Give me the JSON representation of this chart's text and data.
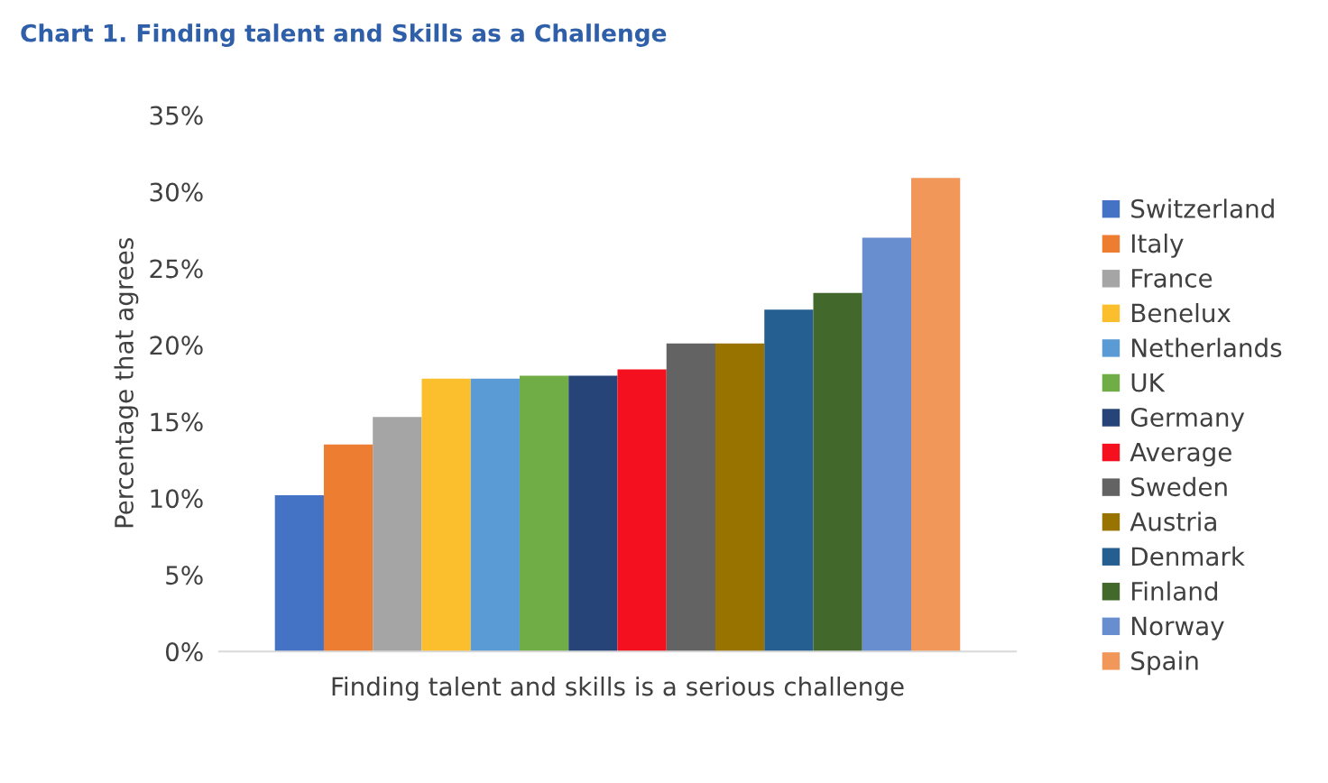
{
  "chart_data": {
    "type": "bar",
    "title": "Chart 1. Finding talent and Skills as a Challenge",
    "ylabel": "Percentage that agrees",
    "categories": [
      "Finding talent and skills is a serious challenge"
    ],
    "series": [
      {
        "name": "Switzerland",
        "color": "#4472c4",
        "values": [
          10.2
        ]
      },
      {
        "name": "Italy",
        "color": "#ed7d31",
        "values": [
          13.5
        ]
      },
      {
        "name": "France",
        "color": "#a5a5a5",
        "values": [
          15.3
        ]
      },
      {
        "name": "Benelux",
        "color": "#fbbf2d",
        "values": [
          17.8
        ]
      },
      {
        "name": "Netherlands",
        "color": "#5b9bd5",
        "values": [
          17.8
        ]
      },
      {
        "name": "UK",
        "color": "#70ad47",
        "values": [
          18.0
        ]
      },
      {
        "name": "Germany",
        "color": "#264478",
        "values": [
          18.0
        ]
      },
      {
        "name": "Average",
        "color": "#f5101f",
        "values": [
          18.4
        ]
      },
      {
        "name": "Sweden",
        "color": "#636363",
        "values": [
          20.1
        ]
      },
      {
        "name": "Austria",
        "color": "#997300",
        "values": [
          20.1
        ]
      },
      {
        "name": "Denmark",
        "color": "#255e91",
        "values": [
          22.3
        ]
      },
      {
        "name": "Finland",
        "color": "#43682b",
        "values": [
          23.4
        ]
      },
      {
        "name": "Norway",
        "color": "#698ed0",
        "values": [
          27.0
        ]
      },
      {
        "name": "Spain",
        "color": "#f1975a",
        "values": [
          30.9
        ]
      }
    ],
    "ylim": [
      0,
      35
    ],
    "yticks": [
      {
        "value": 0,
        "label": "0%"
      },
      {
        "value": 5,
        "label": "5%"
      },
      {
        "value": 10,
        "label": "10%"
      },
      {
        "value": 15,
        "label": "15%"
      },
      {
        "value": 20,
        "label": "20%"
      },
      {
        "value": 25,
        "label": "25%"
      },
      {
        "value": 30,
        "label": "30%"
      },
      {
        "value": 35,
        "label": "35%"
      }
    ],
    "grid": false,
    "legend": "right"
  }
}
